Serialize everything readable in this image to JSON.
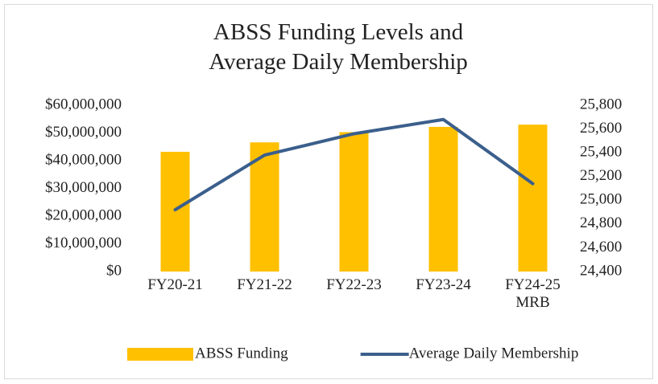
{
  "chart_data": {
    "type": "bar_line",
    "title": "ABSS Funding Levels and Average Daily Membership",
    "categories": [
      "FY20-21",
      "FY21-22",
      "FY22-23",
      "FY23-24",
      "FY24-25 MRB"
    ],
    "series": [
      {
        "name": "ABSS Funding",
        "type": "bar",
        "color": "#ffc000",
        "axis": "y",
        "values": [
          43200000,
          46600000,
          50300000,
          52200000,
          53000000
        ]
      },
      {
        "name": "Average Daily Membership",
        "type": "line",
        "color": "#3b5f8c",
        "axis": "y2",
        "values": [
          24920,
          25380,
          25560,
          25680,
          25140
        ]
      }
    ],
    "ylim": [
      0,
      60000000
    ],
    "yticks": [
      {
        "value": 0,
        "label": "$0"
      },
      {
        "value": 10000000,
        "label": "$10,000,000"
      },
      {
        "value": 20000000,
        "label": "$20,000,000"
      },
      {
        "value": 30000000,
        "label": "$30,000,000"
      },
      {
        "value": 40000000,
        "label": "$40,000,000"
      },
      {
        "value": 50000000,
        "label": "$50,000,000"
      },
      {
        "value": 60000000,
        "label": "$60,000,000"
      }
    ],
    "y2lim": [
      24400,
      25800
    ],
    "y2ticks": [
      {
        "value": 24400,
        "label": "24,400"
      },
      {
        "value": 24600,
        "label": "24,600"
      },
      {
        "value": 24800,
        "label": "24,800"
      },
      {
        "value": 25000,
        "label": "25,000"
      },
      {
        "value": 25200,
        "label": "25,200"
      },
      {
        "value": 25400,
        "label": "25,400"
      },
      {
        "value": 25600,
        "label": "25,600"
      },
      {
        "value": 25800,
        "label": "25,800"
      }
    ],
    "legend": "bottom"
  }
}
